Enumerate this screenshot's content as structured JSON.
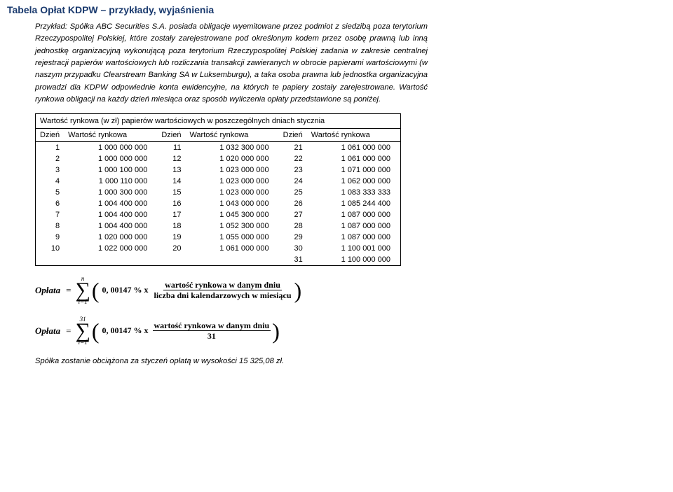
{
  "page_title": "Tabela Opłat KDPW – przykłady, wyjaśnienia",
  "intro": "Przykład: Spółka ABC Securities S.A. posiada obligacje wyemitowane przez podmiot z siedzibą poza terytorium Rzeczypospolitej Polskiej, które zostały zarejestrowane pod określonym kodem przez osobę prawną lub inną jednostkę organizacyjną wykonującą poza terytorium Rzeczypospolitej Polskiej zadania w zakresie centralnej rejestracji papierów wartościowych lub rozliczania transakcji zawieranych w obrocie papierami wartościowymi (w naszym przypadku Clearstream Banking SA w Luksemburgu), a taka osoba prawna lub jednostka organizacyjna prowadzi dla KDPW odpowiednie konta ewidencyjne, na których te papiery zostały zarejestrowane. Wartość rynkowa obligacji na każdy dzień miesiąca oraz sposób wyliczenia opłaty przedstawione są poniżej.",
  "table": {
    "caption": "Wartość rynkowa (w zł) papierów wartościowych w poszczególnych dniach stycznia",
    "col_day": "Dzień",
    "col_val": "Wartość rynkowa",
    "rows": [
      {
        "d1": "1",
        "v1": "1 000 000 000",
        "d2": "11",
        "v2": "1 032 300 000",
        "d3": "21",
        "v3": "1 061 000 000"
      },
      {
        "d1": "2",
        "v1": "1 000 000 000",
        "d2": "12",
        "v2": "1 020 000 000",
        "d3": "22",
        "v3": "1 061 000 000"
      },
      {
        "d1": "3",
        "v1": "1 000 100 000",
        "d2": "13",
        "v2": "1 023 000 000",
        "d3": "23",
        "v3": "1 071 000 000"
      },
      {
        "d1": "4",
        "v1": "1 000 110 000",
        "d2": "14",
        "v2": "1 023 000 000",
        "d3": "24",
        "v3": "1 062 000 000"
      },
      {
        "d1": "5",
        "v1": "1 000 300 000",
        "d2": "15",
        "v2": "1 023 000 000",
        "d3": "25",
        "v3": "1 083 333 333"
      },
      {
        "d1": "6",
        "v1": "1 004 400 000",
        "d2": "16",
        "v2": "1 043 000 000",
        "d3": "26",
        "v3": "1 085 244 400"
      },
      {
        "d1": "7",
        "v1": "1 004 400 000",
        "d2": "17",
        "v2": "1 045 300 000",
        "d3": "27",
        "v3": "1 087 000 000"
      },
      {
        "d1": "8",
        "v1": "1 004 400 000",
        "d2": "18",
        "v2": "1 052 300 000",
        "d3": "28",
        "v3": "1 087 000 000"
      },
      {
        "d1": "9",
        "v1": "1 020 000 000",
        "d2": "19",
        "v2": "1 055 000 000",
        "d3": "29",
        "v3": "1 087 000 000"
      },
      {
        "d1": "10",
        "v1": "1 022 000 000",
        "d2": "20",
        "v2": "1 061 000 000",
        "d3": "30",
        "v3": "1 100 001 000"
      },
      {
        "d1": "",
        "v1": "",
        "d2": "",
        "v2": "",
        "d3": "31",
        "v3": "1 100 000 000"
      }
    ]
  },
  "formula": {
    "label": "Opłata",
    "equals": "=",
    "sigma_top_n": "n",
    "sigma_top_31": "31",
    "sigma_bot": "i=1",
    "rate": "0, 00147 % x",
    "num": "wartość rynkowa w danym dniu",
    "den1": "liczba dni kalendarzowych w miesiącu",
    "den2": "31"
  },
  "footer": "Spółka zostanie obciążona za styczeń opłatą w wysokości 15 325,08 zł."
}
